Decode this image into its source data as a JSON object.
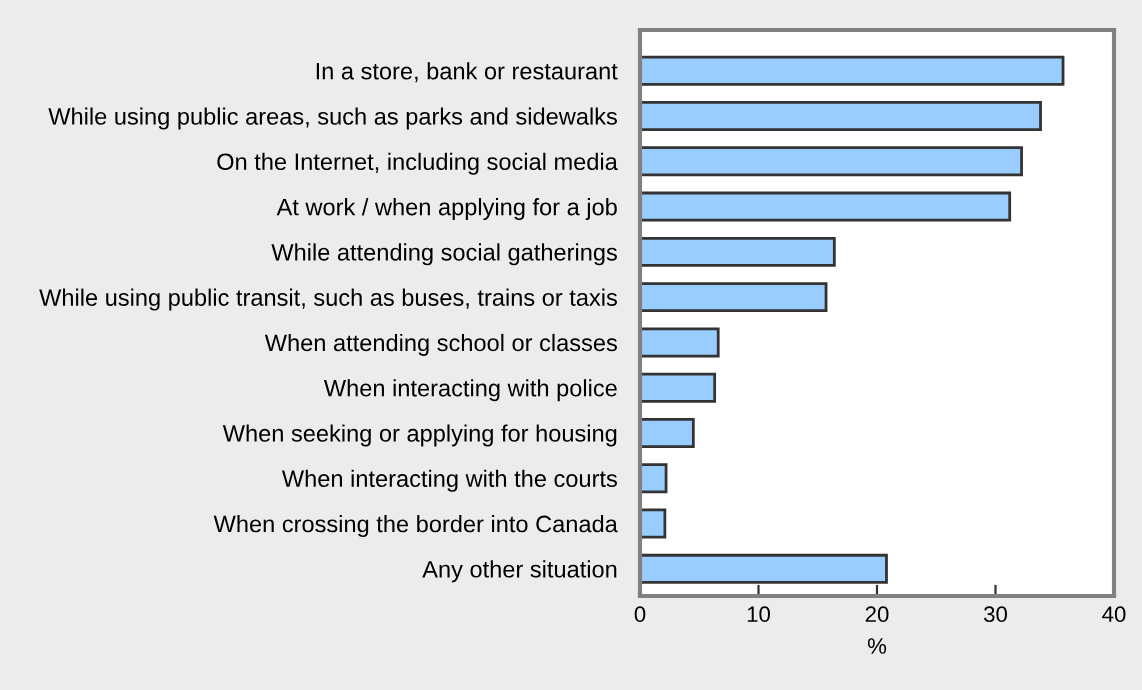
{
  "chart_data": {
    "type": "bar",
    "orientation": "horizontal",
    "xlabel": "%",
    "categories": [
      "In a store, bank or restaurant",
      "While using public areas, such as parks and sidewalks",
      "On the Internet, including social media",
      "At work / when applying for a job",
      "While attending social gatherings",
      "While using public transit, such as buses, trains or taxis",
      "When attending school or classes",
      "When interacting with police",
      "When seeking or applying for housing",
      "When interacting with the courts",
      "When crossing the border into Canada",
      "Any other situation"
    ],
    "values": [
      35.7,
      33.8,
      32.2,
      31.2,
      16.4,
      15.7,
      6.6,
      6.3,
      4.5,
      2.2,
      2.1,
      20.8
    ],
    "color": "#99ccff",
    "xlim": [
      0,
      40
    ],
    "xticks": [
      0,
      10,
      20,
      30,
      40
    ],
    "grid": false,
    "legend": false
  }
}
